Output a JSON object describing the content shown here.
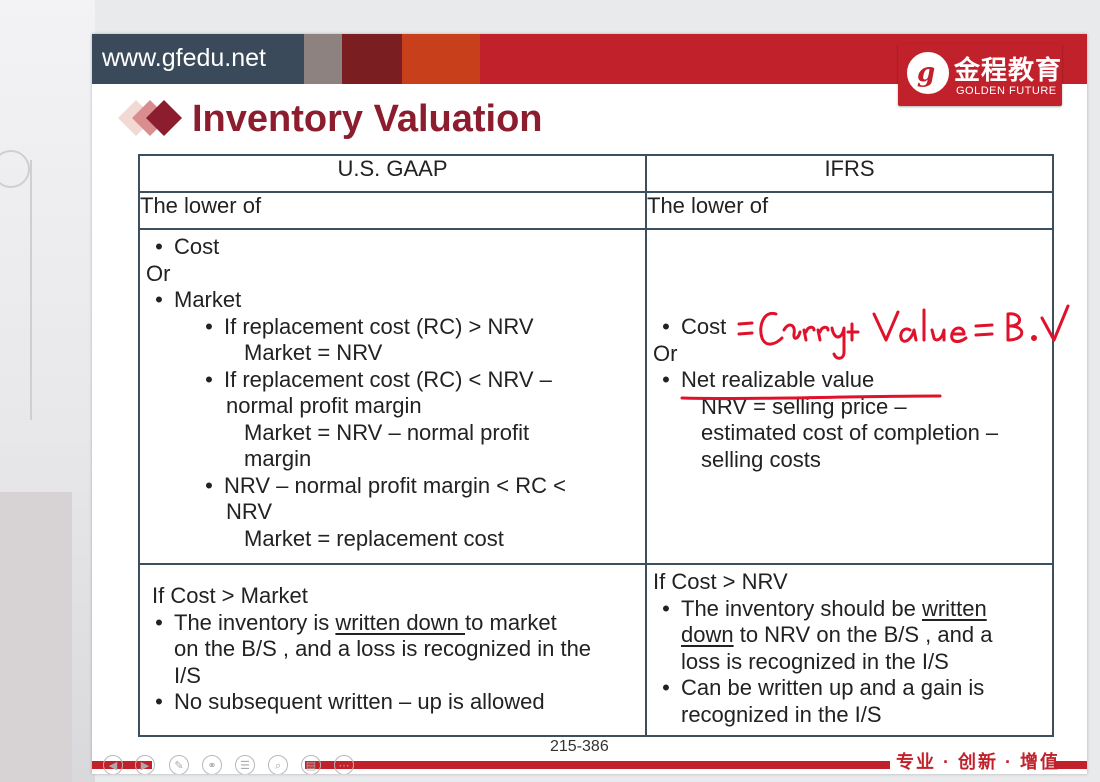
{
  "header": {
    "site_url": "www.gfedu.net",
    "logo_cn": "金程教育",
    "logo_en": "GOLDEN FUTURE",
    "logo_mark": "g"
  },
  "slide": {
    "title": "Inventory Valuation",
    "table": {
      "headers": [
        "U.S. GAAP",
        "IFRS"
      ],
      "row_lower": [
        "The lower of",
        "The lower of"
      ],
      "gaap_body": {
        "cost": "Cost",
        "or": "Or",
        "market": "Market",
        "case1_line1": "If replacement cost (RC) > NRV",
        "case1_line2": "Market = NRV",
        "case2_line1": "If replacement cost (RC) < NRV –",
        "case2_line2": "normal profit margin",
        "case2_line3": "Market  = NRV – normal profit",
        "case2_line4": "margin",
        "case3_line1": "NRV – normal profit margin < RC <",
        "case3_line2": "NRV",
        "case3_line3": "Market = replacement cost"
      },
      "ifrs_body": {
        "cost": "Cost",
        "or": "Or",
        "nrv": "Net realizable value",
        "nrv_line1": "NRV = selling price –",
        "nrv_line2": "estimated cost of completion –",
        "nrv_line3": "selling costs"
      },
      "gaap_bottom": {
        "condition": "If Cost > Market",
        "p1_before": "The inventory is ",
        "p1_underline": "written down ",
        "p1_after": "to market",
        "p1_line2": "on the B/S , and a loss is recognized in the",
        "p1_line3": "I/S",
        "p2": "No subsequent written – up is allowed"
      },
      "ifrs_bottom": {
        "condition": "If  Cost > NRV",
        "p1_before": "The inventory should be ",
        "p1_underline1": "written",
        "p1_underline2": "down",
        "p1_after": " to NRV on the B/S , and a",
        "p1_line3": "loss is recognized in the I/S",
        "p2_line1": "Can be written up and a gain is",
        "p2_line2": "recognized in the I/S"
      }
    },
    "annotation_handwritten": "= Carrying Value = B.V",
    "page_number": "215-386",
    "slogan": "专业 · 创新 · 增值"
  },
  "colors": {
    "title": "#8b1d2e",
    "brand_red": "#c0212a",
    "ink_red": "#e0122b",
    "topbar_dark": "#3a4a5a"
  },
  "icons": [
    "prev-icon",
    "next-icon",
    "pen-icon",
    "link-icon",
    "menu-icon",
    "zoom-icon",
    "slides-icon",
    "more-icon"
  ]
}
